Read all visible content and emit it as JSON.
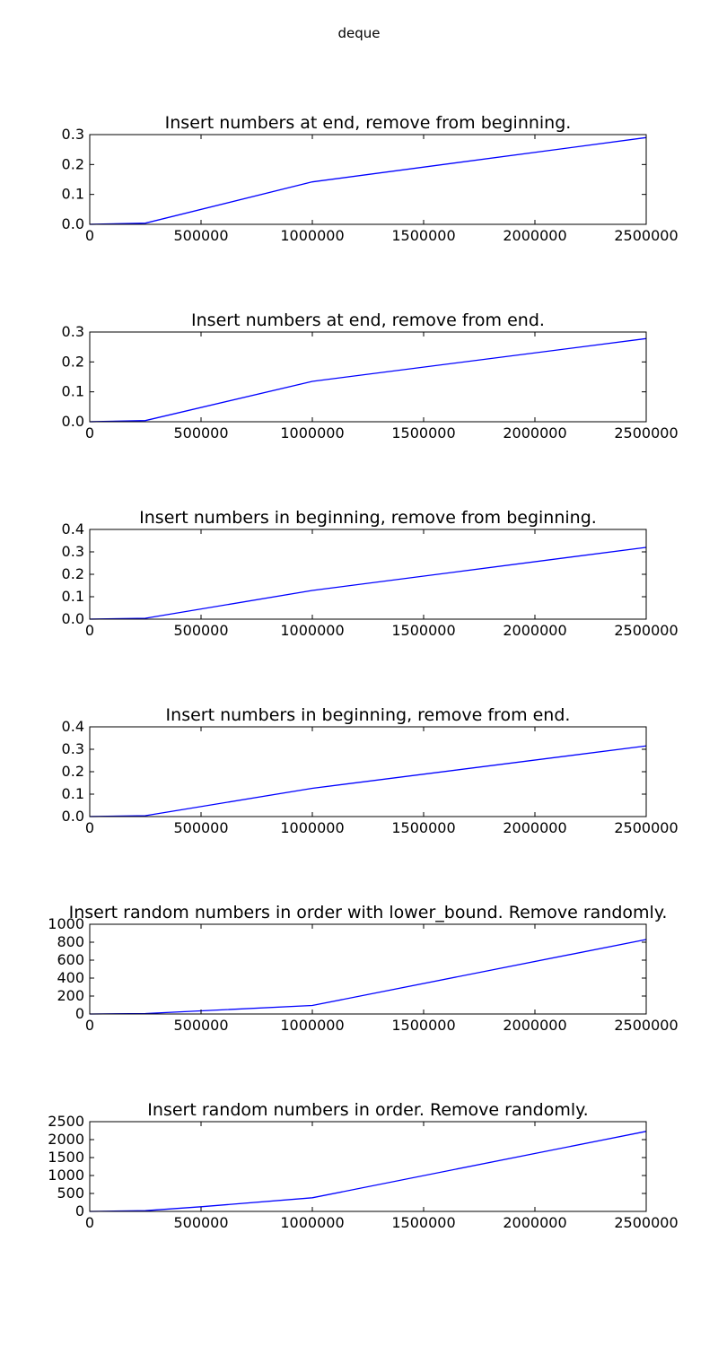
{
  "figure": {
    "suptitle": "deque"
  },
  "chart_data": [
    {
      "type": "line",
      "title": "Insert numbers at end, remove from beginning.",
      "xlabel": "",
      "ylabel": "",
      "xlim": [
        0,
        2500000
      ],
      "ylim": [
        0.0,
        0.3
      ],
      "xticks": [
        0,
        500000,
        1000000,
        1500000,
        2000000,
        2500000
      ],
      "xtick_labels": [
        "0",
        "500000",
        "1000000",
        "1500000",
        "2000000",
        "2500000"
      ],
      "yticks": [
        0.0,
        0.1,
        0.2,
        0.3
      ],
      "ytick_labels": [
        "0.0",
        "0.1",
        "0.2",
        "0.3"
      ],
      "grid": false,
      "color": "#0000ff",
      "x": [
        0,
        10000,
        250000,
        1000000,
        2500000
      ],
      "y": [
        0.0,
        0.0002,
        0.004,
        0.142,
        0.29
      ]
    },
    {
      "type": "line",
      "title": "Insert numbers at end, remove from end.",
      "xlabel": "",
      "ylabel": "",
      "xlim": [
        0,
        2500000
      ],
      "ylim": [
        0.0,
        0.3
      ],
      "xticks": [
        0,
        500000,
        1000000,
        1500000,
        2000000,
        2500000
      ],
      "xtick_labels": [
        "0",
        "500000",
        "1000000",
        "1500000",
        "2000000",
        "2500000"
      ],
      "yticks": [
        0.0,
        0.1,
        0.2,
        0.3
      ],
      "ytick_labels": [
        "0.0",
        "0.1",
        "0.2",
        "0.3"
      ],
      "grid": false,
      "color": "#0000ff",
      "x": [
        0,
        10000,
        250000,
        1000000,
        2500000
      ],
      "y": [
        0.0,
        0.0002,
        0.004,
        0.135,
        0.278
      ]
    },
    {
      "type": "line",
      "title": "Insert numbers in beginning, remove from beginning.",
      "xlabel": "",
      "ylabel": "",
      "xlim": [
        0,
        2500000
      ],
      "ylim": [
        0.0,
        0.4
      ],
      "xticks": [
        0,
        500000,
        1000000,
        1500000,
        2000000,
        2500000
      ],
      "xtick_labels": [
        "0",
        "500000",
        "1000000",
        "1500000",
        "2000000",
        "2500000"
      ],
      "yticks": [
        0.0,
        0.1,
        0.2,
        0.3,
        0.4
      ],
      "ytick_labels": [
        "0.0",
        "0.1",
        "0.2",
        "0.3",
        "0.4"
      ],
      "grid": false,
      "color": "#0000ff",
      "x": [
        0,
        10000,
        250000,
        1000000,
        2500000
      ],
      "y": [
        0.0,
        0.0002,
        0.004,
        0.128,
        0.32
      ]
    },
    {
      "type": "line",
      "title": "Insert numbers in beginning, remove from end.",
      "xlabel": "",
      "ylabel": "",
      "xlim": [
        0,
        2500000
      ],
      "ylim": [
        0.0,
        0.4
      ],
      "xticks": [
        0,
        500000,
        1000000,
        1500000,
        2000000,
        2500000
      ],
      "xtick_labels": [
        "0",
        "500000",
        "1000000",
        "1500000",
        "2000000",
        "2500000"
      ],
      "yticks": [
        0.0,
        0.1,
        0.2,
        0.3,
        0.4
      ],
      "ytick_labels": [
        "0.0",
        "0.1",
        "0.2",
        "0.3",
        "0.4"
      ],
      "grid": false,
      "color": "#0000ff",
      "x": [
        0,
        10000,
        250000,
        1000000,
        2500000
      ],
      "y": [
        0.0,
        0.0002,
        0.004,
        0.126,
        0.315
      ]
    },
    {
      "type": "line",
      "title": "Insert random numbers in order with lower_bound. Remove randomly.",
      "xlabel": "",
      "ylabel": "",
      "xlim": [
        0,
        2500000
      ],
      "ylim": [
        0,
        1000
      ],
      "xticks": [
        0,
        500000,
        1000000,
        1500000,
        2000000,
        2500000
      ],
      "xtick_labels": [
        "0",
        "500000",
        "1000000",
        "1500000",
        "2000000",
        "2500000"
      ],
      "yticks": [
        0,
        200,
        400,
        600,
        800,
        1000
      ],
      "ytick_labels": [
        "0",
        "200",
        "400",
        "600",
        "800",
        "1000"
      ],
      "grid": false,
      "color": "#0000ff",
      "x": [
        0,
        10000,
        250000,
        500000,
        1000000,
        2500000
      ],
      "y": [
        0,
        0.1,
        5,
        35,
        95,
        830
      ]
    },
    {
      "type": "line",
      "title": "Insert random numbers in order. Remove randomly.",
      "xlabel": "",
      "ylabel": "",
      "xlim": [
        0,
        2500000
      ],
      "ylim": [
        0,
        2500
      ],
      "xticks": [
        0,
        500000,
        1000000,
        1500000,
        2000000,
        2500000
      ],
      "xtick_labels": [
        "0",
        "500000",
        "1000000",
        "1500000",
        "2000000",
        "2500000"
      ],
      "yticks": [
        0,
        500,
        1000,
        1500,
        2000,
        2500
      ],
      "ytick_labels": [
        "0",
        "500",
        "1000",
        "1500",
        "2000",
        "2500"
      ],
      "grid": false,
      "color": "#0000ff",
      "x": [
        0,
        10000,
        250000,
        500000,
        1000000,
        2500000
      ],
      "y": [
        0,
        0.2,
        20,
        130,
        380,
        2230
      ]
    }
  ]
}
